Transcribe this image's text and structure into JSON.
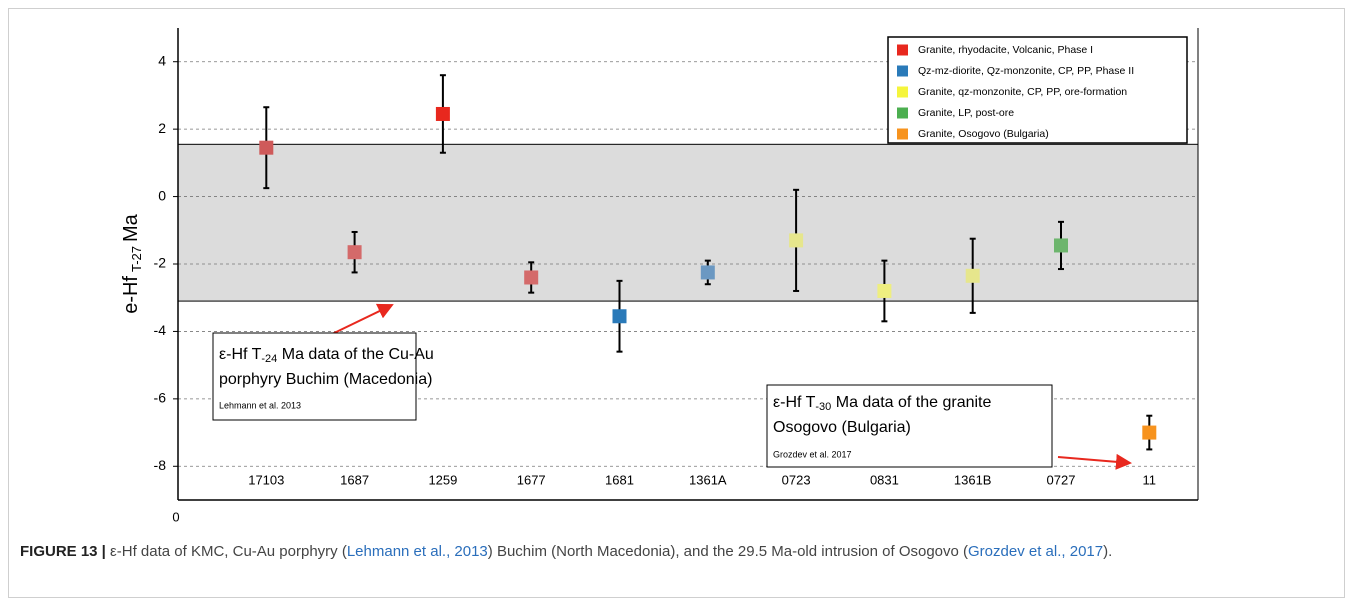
{
  "chart_data": {
    "type": "errorbar",
    "y_label": {
      "main": "e-Hf",
      "sub": "T-27",
      "unit": "Ma"
    },
    "x_origin_label": "0",
    "categories": [
      "17103",
      "1687",
      "1259",
      "1677",
      "1681",
      "1361A",
      "0723",
      "0831",
      "1361B",
      "0727",
      "11"
    ],
    "ylim": [
      -9,
      5
    ],
    "yticks": [
      -8,
      -6,
      -4,
      -2,
      0,
      2,
      4
    ],
    "grid": true,
    "band": {
      "range": [
        -3.1,
        1.55
      ],
      "color": "#dcdcdc"
    },
    "legend": "top-right",
    "series": [
      {
        "name": "Granite, rhyodacite, Volcanic, Phase I",
        "color": "#e8281e",
        "values": [
          1.45,
          -1.65,
          2.45,
          -2.4,
          null,
          null,
          null,
          null,
          null,
          null,
          null
        ],
        "errors": [
          1.2,
          0.6,
          1.15,
          0.45,
          null,
          null,
          null,
          null,
          null,
          null,
          null
        ],
        "point_colors": [
          "#cf5a5a",
          "#d46a6a",
          "#e8281e",
          "#d46a6a",
          null,
          null,
          null,
          null,
          null,
          null,
          null
        ]
      },
      {
        "name": "Qz-mz-diorite, Qz-monzonite, CP, PP, Phase II",
        "color": "#2a7ab9",
        "values": [
          null,
          null,
          null,
          null,
          -3.55,
          -2.25,
          null,
          null,
          null,
          null,
          null
        ],
        "errors": [
          null,
          null,
          null,
          null,
          1.05,
          0.35,
          null,
          null,
          null,
          null,
          null
        ],
        "point_colors": [
          null,
          null,
          null,
          null,
          "#2a7ab9",
          "#6b98c2",
          null,
          null,
          null,
          null,
          null
        ]
      },
      {
        "name": "Granite, qz-monzonite, CP, PP, ore-formation",
        "color": "#f5f53c",
        "values": [
          null,
          null,
          null,
          null,
          null,
          null,
          -1.3,
          -2.8,
          -2.35,
          null,
          null
        ],
        "errors": [
          null,
          null,
          null,
          null,
          null,
          null,
          1.5,
          0.9,
          1.1,
          null,
          null
        ],
        "point_colors": [
          null,
          null,
          null,
          null,
          null,
          null,
          "#e6e68c",
          "#eeee80",
          "#e6e68c",
          null,
          null
        ]
      },
      {
        "name": "Granite, LP, post-ore",
        "color": "#4caf50",
        "values": [
          null,
          null,
          null,
          null,
          null,
          null,
          null,
          null,
          null,
          -1.45,
          null
        ],
        "errors": [
          null,
          null,
          null,
          null,
          null,
          null,
          null,
          null,
          null,
          0.7,
          null
        ],
        "point_colors": [
          null,
          null,
          null,
          null,
          null,
          null,
          null,
          null,
          null,
          "#6db56d",
          null
        ]
      },
      {
        "name": "Granite, Osogovo (Bulgaria)",
        "color": "#f7931e",
        "values": [
          null,
          null,
          null,
          null,
          null,
          null,
          null,
          null,
          null,
          null,
          -7.0
        ],
        "errors": [
          null,
          null,
          null,
          null,
          null,
          null,
          null,
          null,
          null,
          null,
          0.5
        ],
        "point_colors": [
          null,
          null,
          null,
          null,
          null,
          null,
          null,
          null,
          null,
          null,
          "#f7931e"
        ]
      }
    ],
    "annotations": [
      {
        "line1": {
          "pre": "ε-Hf T",
          "sub": "-24",
          "post": " Ma data of the Cu-Au"
        },
        "line2": "porphyry Buchim (Macedonia)",
        "ref": "Lehmann et al. 2013"
      },
      {
        "line1": {
          "pre": "ε-Hf T",
          "sub": "-30",
          "post": " Ma data of the granite"
        },
        "line2": "Osogovo (Bulgaria)",
        "ref": "Grozdev et al. 2017"
      }
    ]
  },
  "caption": {
    "label": "FIGURE 13 |",
    "t1": " ε-Hf data of KMC, Cu-Au porphyry (",
    "link1": "Lehmann et al., 2013",
    "t2": ") Buchim (North Macedonia), and the 29.5 Ma-old intrusion of Osogovo (",
    "link2": "Grozdev et al., 2017",
    "t3": ")."
  }
}
